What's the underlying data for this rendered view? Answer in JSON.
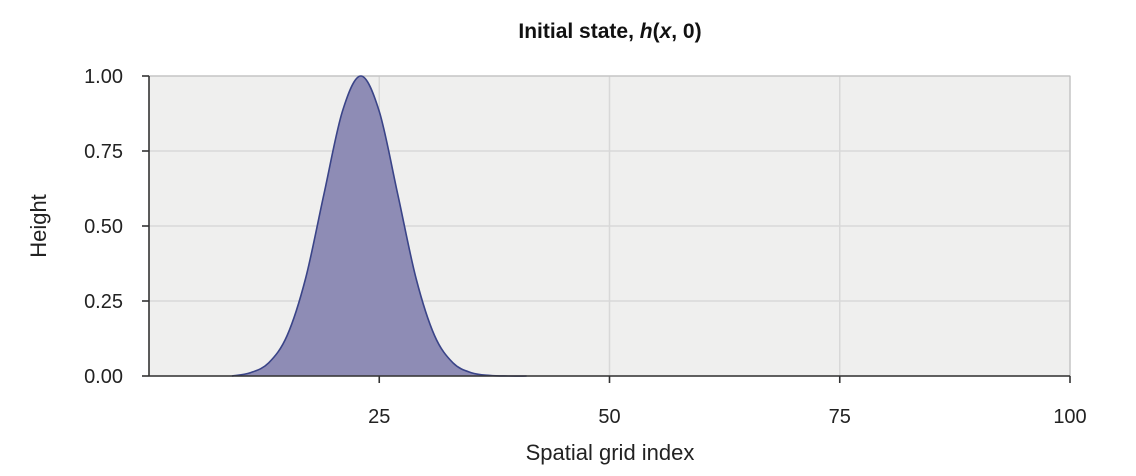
{
  "chart_data": {
    "type": "area",
    "title": {
      "prefix": "Initial state, ",
      "h": "h",
      "open": "(",
      "x": "x",
      "rest": ", 0)"
    },
    "xlabel": "Spatial grid index",
    "ylabel": "Height",
    "xlim": [
      0,
      100
    ],
    "ylim": [
      0,
      1
    ],
    "x_ticks": [
      25,
      50,
      75,
      100
    ],
    "x_tick_labels": [
      "25",
      "50",
      "75",
      "100"
    ],
    "y_ticks": [
      0,
      0.25,
      0.5,
      0.75,
      1
    ],
    "y_tick_labels": [
      "0.00",
      "0.25",
      "0.50",
      "0.75",
      "1.00"
    ],
    "grid": true,
    "series": [
      {
        "x": [
          9,
          11,
          13,
          15,
          17,
          19,
          21,
          23,
          25,
          27,
          29,
          31,
          33,
          35,
          37,
          39,
          41
        ],
        "y": [
          0.0,
          0.011,
          0.044,
          0.135,
          0.325,
          0.607,
          0.882,
          1.0,
          0.882,
          0.607,
          0.325,
          0.135,
          0.044,
          0.011,
          0.002,
          0.0,
          0.0
        ]
      }
    ],
    "colors": {
      "fill": "#8e8cb5",
      "line": "#3a4488",
      "panel": "#efefee",
      "grid": "#d8d8d8"
    }
  }
}
